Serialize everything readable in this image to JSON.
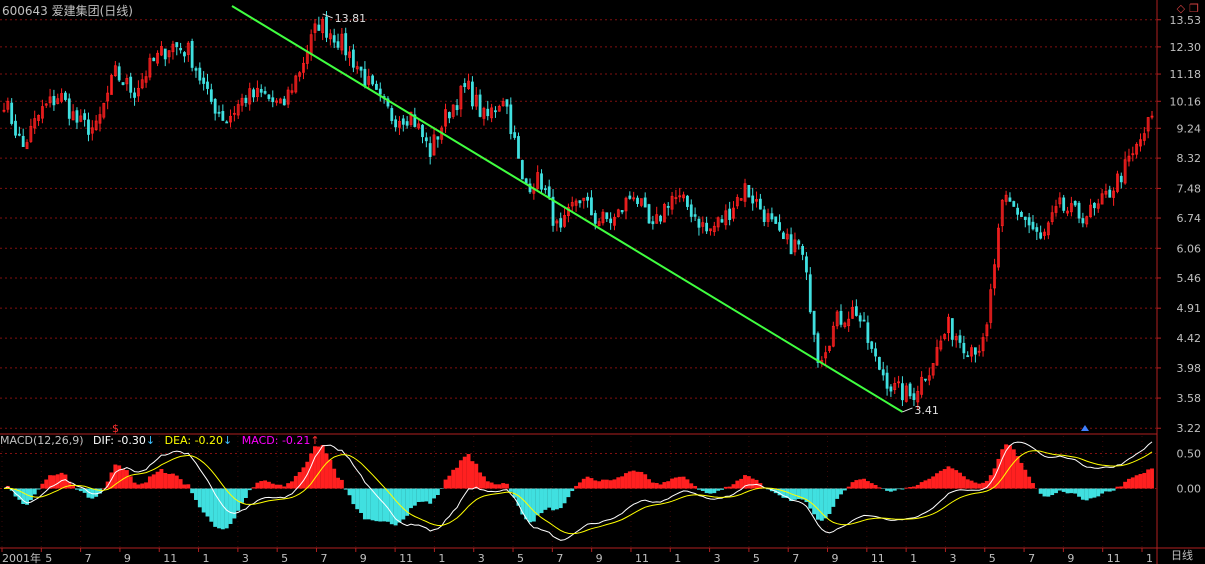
{
  "header": {
    "title": "600643 爱建集团(日线)",
    "icons": [
      "diamond-icon",
      "restore-window-icon"
    ]
  },
  "period_label": "日线",
  "chart_data": [
    {
      "type": "candlestick",
      "title": "600643 爱建集团(日线)",
      "y_tick_labels": [
        "13.53",
        "12.30",
        "11.18",
        "10.16",
        "9.24",
        "8.32",
        "7.48",
        "6.74",
        "6.06",
        "5.46",
        "4.91",
        "4.42",
        "3.98",
        "3.58",
        "3.22"
      ],
      "ylim": [
        3.2,
        14.2
      ],
      "log_scale": true,
      "x_tick_labels": [
        "2001年",
        "5",
        "7",
        "9",
        "11",
        "1",
        "3",
        "5",
        "7",
        "9",
        "11",
        "1",
        "3",
        "5",
        "7",
        "9",
        "11",
        "1",
        "3",
        "5",
        "7",
        "9",
        "11",
        "1",
        "3",
        "5",
        "7",
        "9",
        "11",
        "1"
      ],
      "annotations": [
        {
          "text": "13.81",
          "value": 13.81,
          "kind": "high"
        },
        {
          "text": "3.41",
          "value": 3.41,
          "kind": "low"
        }
      ],
      "trendline": {
        "color": "#40ff40",
        "from_value": 14.2,
        "to_value": 3.41
      },
      "series_anchors": [
        [
          0,
          10.2
        ],
        [
          1,
          8.6
        ],
        [
          2,
          9.8
        ],
        [
          3,
          10.4
        ],
        [
          4,
          9.4
        ],
        [
          5,
          9.2
        ],
        [
          6,
          11.2
        ],
        [
          7,
          10.5
        ],
        [
          8,
          11.6
        ],
        [
          9,
          12.4
        ],
        [
          10,
          12.1
        ],
        [
          11,
          10.3
        ],
        [
          12,
          9.5
        ],
        [
          13,
          10.3
        ],
        [
          14,
          10.4
        ],
        [
          15,
          9.9
        ],
        [
          16,
          11.4
        ],
        [
          17,
          13.4
        ],
        [
          18,
          12.7
        ],
        [
          19,
          11.6
        ],
        [
          20,
          10.4
        ],
        [
          21,
          9.6
        ],
        [
          22,
          9.7
        ],
        [
          23,
          8.5
        ],
        [
          24,
          9.8
        ],
        [
          25,
          10.7
        ],
        [
          26,
          9.5
        ],
        [
          27,
          10.4
        ],
        [
          28,
          7.6
        ],
        [
          29,
          7.7
        ],
        [
          30,
          6.3
        ],
        [
          31,
          7.3
        ],
        [
          32,
          6.7
        ],
        [
          33,
          6.7
        ],
        [
          34,
          7.4
        ],
        [
          35,
          6.4
        ],
        [
          36,
          7.3
        ],
        [
          37,
          7.0
        ],
        [
          38,
          6.4
        ],
        [
          39,
          6.8
        ],
        [
          40,
          7.5
        ],
        [
          41,
          6.9
        ],
        [
          42,
          6.2
        ],
        [
          43,
          6.1
        ],
        [
          44,
          4.1
        ],
        [
          45,
          4.7
        ],
        [
          46,
          4.9
        ],
        [
          47,
          4.1
        ],
        [
          48,
          3.7
        ],
        [
          49,
          3.6
        ],
        [
          50,
          4.0
        ],
        [
          51,
          4.6
        ],
        [
          52,
          4.3
        ],
        [
          53,
          4.3
        ],
        [
          54,
          7.2
        ],
        [
          55,
          6.8
        ],
        [
          56,
          6.2
        ],
        [
          57,
          7.0
        ],
        [
          58,
          6.8
        ],
        [
          59,
          6.9
        ],
        [
          60,
          7.6
        ],
        [
          61,
          8.4
        ],
        [
          62,
          9.6
        ]
      ]
    },
    {
      "type": "line",
      "title": "MACD(12,26,9)",
      "series": [
        {
          "name": "DIF",
          "current": -0.3,
          "color": "#ffffff"
        },
        {
          "name": "DEA",
          "current": -0.2,
          "color": "#ffff00"
        },
        {
          "name": "MACD",
          "current": -0.21,
          "color": "#ff00ff"
        }
      ],
      "y_tick_labels": [
        "0.50",
        "0.00"
      ],
      "ylim": [
        -0.85,
        0.75
      ]
    }
  ],
  "macd_legend": {
    "label": "MACD(12,26,9)",
    "dif": "DIF: -0.30",
    "dea": "DEA: -0.20",
    "macd": "MACD: -0.21",
    "dif_arrow": "↓",
    "dea_arrow": "↓",
    "macd_arrow": "↑"
  },
  "colors": {
    "background": "#000000",
    "up": "#ff2020",
    "down": "#40e0e0",
    "grid": "#801010",
    "axis_text": "#c0c0c0",
    "trendline": "#40ff40"
  }
}
